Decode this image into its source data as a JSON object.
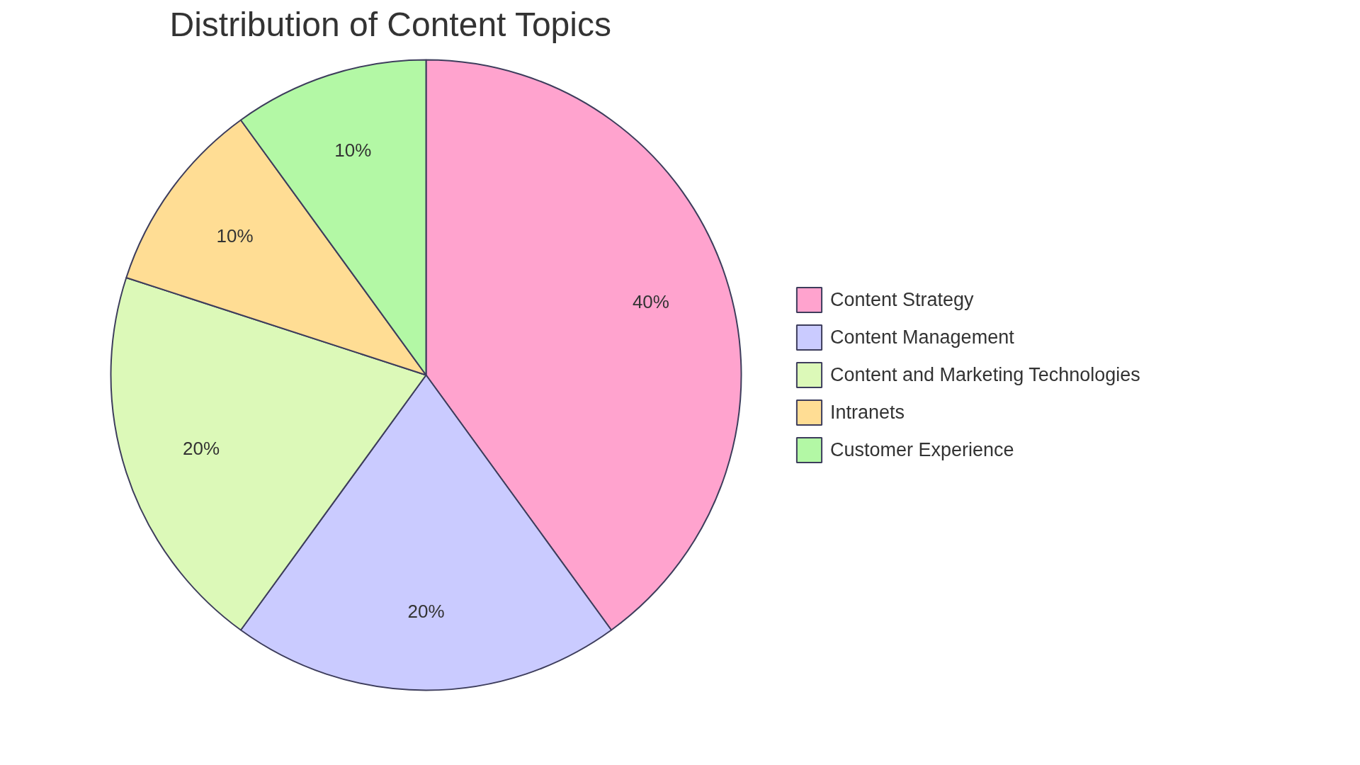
{
  "chart_data": {
    "type": "pie",
    "title": "Distribution of Content Topics",
    "categories": [
      "Content Strategy",
      "Content Management",
      "Content and Marketing Technologies",
      "Intranets",
      "Customer Experience"
    ],
    "values": [
      40,
      20,
      20,
      10,
      10
    ],
    "value_labels": [
      "40%",
      "20%",
      "20%",
      "10%",
      "10%"
    ],
    "colors": [
      "#ffa3ce",
      "#cacbff",
      "#dcf9b8",
      "#ffdd94",
      "#b3f8a5"
    ],
    "legend": "right"
  }
}
